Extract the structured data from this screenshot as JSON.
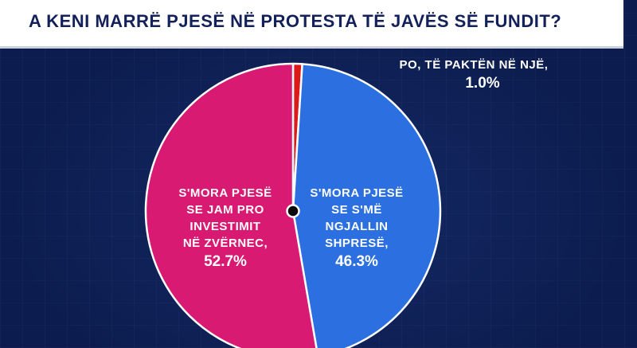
{
  "header": {
    "title": "A KENI MARRË PJESË NË PROTESTA TË JAVËS SË FUNDIT?"
  },
  "chart_data": {
    "type": "pie",
    "title": "A KENI MARRË PJESË NË PROTESTA TË JAVËS SË FUNDIT?",
    "unit": "%",
    "slices": [
      {
        "label_lines": [
          "PO, TË PAKTËN NË NJË,"
        ],
        "value": 1.0,
        "value_label": "1.0%",
        "color": "#dd1a1a"
      },
      {
        "label_lines": [
          "S'MORA PJESË",
          "SE S'MË",
          "NGJALLIN",
          "SHPRESË,"
        ],
        "value": 46.3,
        "value_label": "46.3%",
        "color": "#2b6fe0"
      },
      {
        "label_lines": [
          "S'MORA PJESË",
          "SE JAM PRO",
          "INVESTIMIT",
          "NË ZVËRNEC,"
        ],
        "value": 52.7,
        "value_label": "52.7%",
        "color": "#d81a72"
      }
    ]
  }
}
